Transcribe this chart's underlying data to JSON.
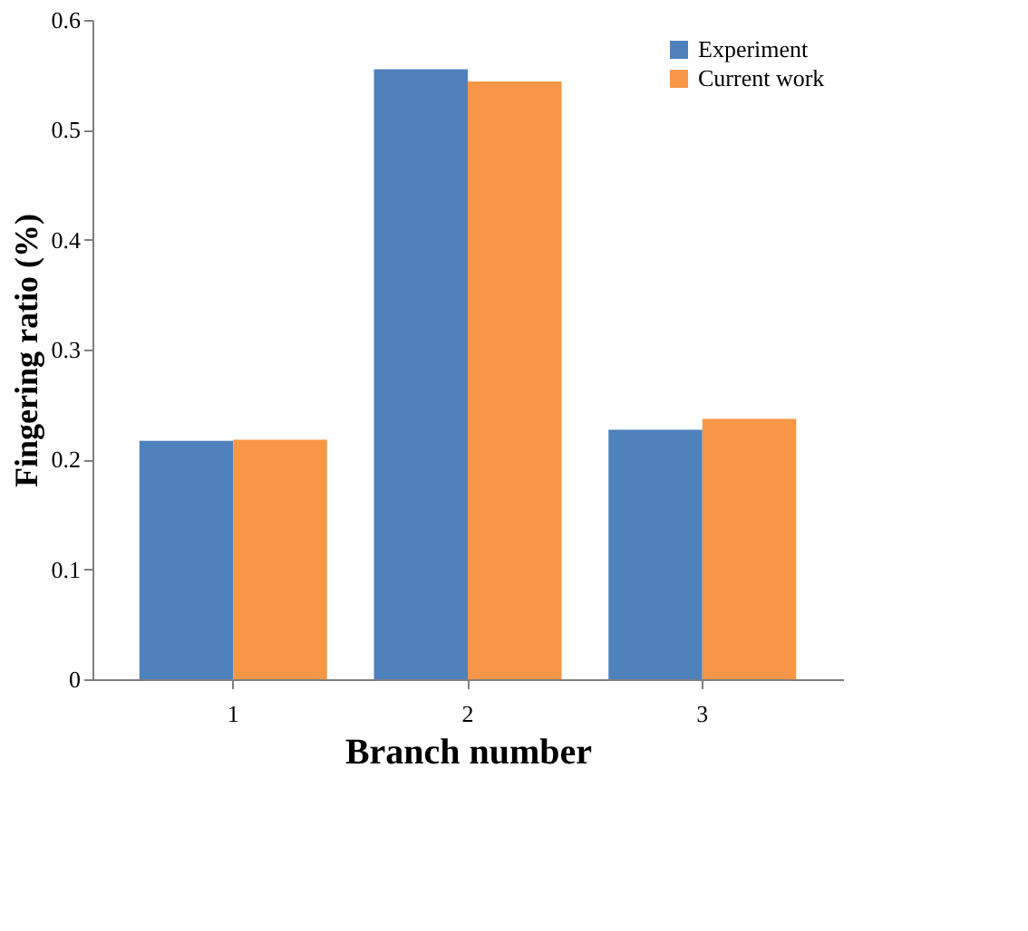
{
  "chart_data": {
    "type": "bar",
    "xlabel": "Branch number",
    "ylabel": "Fingering ratio (%)",
    "categories": [
      "1",
      "2",
      "3"
    ],
    "series": [
      {
        "name": "Experiment",
        "color": "#4f81bd",
        "values": [
          0.217,
          0.555,
          0.227
        ]
      },
      {
        "name": "Current work",
        "color": "#f79646",
        "values": [
          0.218,
          0.544,
          0.237
        ]
      }
    ],
    "ylim": [
      0,
      0.6
    ],
    "yticks": [
      0,
      0.1,
      0.2,
      0.3,
      0.4,
      0.5,
      0.6
    ],
    "grid": false,
    "legend": "top right"
  }
}
